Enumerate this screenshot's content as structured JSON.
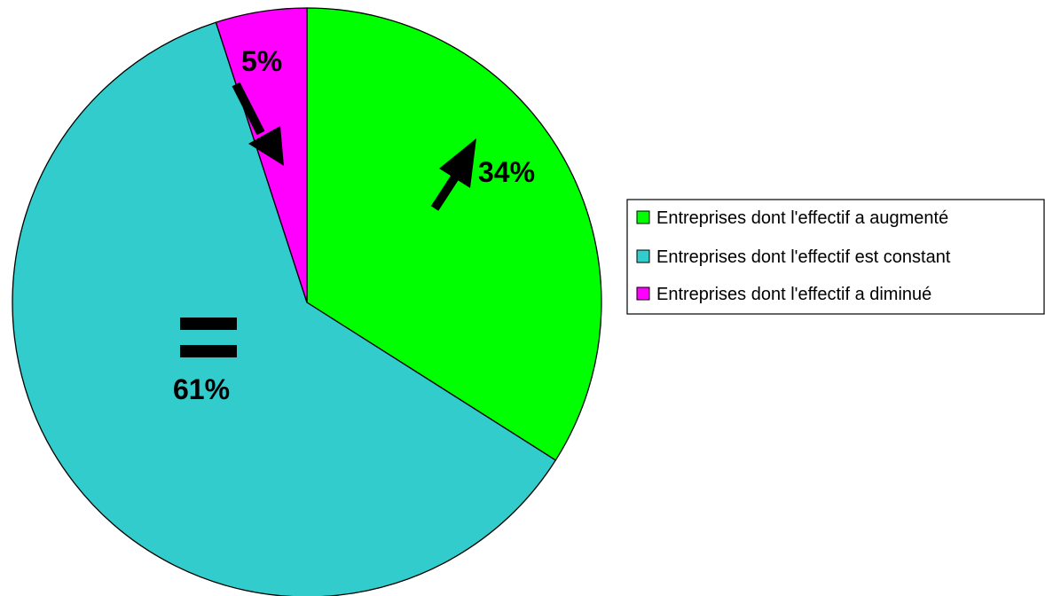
{
  "chart_data": {
    "type": "pie",
    "slices": [
      {
        "label": "Entreprises dont l'effectif a augmenté",
        "value": 34,
        "value_label": "34%",
        "color": "#00ff00"
      },
      {
        "label": "Entreprises dont l'effectif est constant",
        "value": 61,
        "value_label": "61%",
        "color": "#33cccc"
      },
      {
        "label": "Entreprises dont l'effectif a diminué",
        "value": 5,
        "value_label": "5%",
        "color": "#ff00ff"
      }
    ],
    "legend_position": "right",
    "outline_color": "#000000",
    "marker_color": "#000000",
    "slice_markers": [
      "arrow-up-right",
      "equals-sign",
      "arrow-down-right"
    ]
  }
}
